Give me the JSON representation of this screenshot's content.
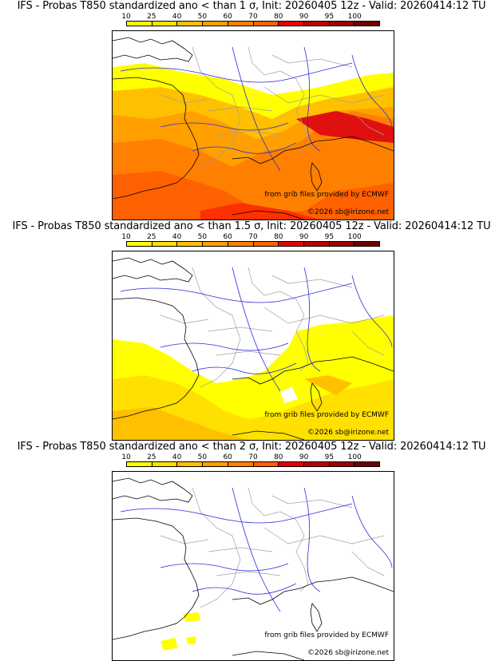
{
  "colorbar": {
    "labels": [
      "10",
      "25",
      "40",
      "50",
      "60",
      "70",
      "80",
      "90",
      "95",
      "100"
    ],
    "colors": [
      "#ffff00",
      "#ffe000",
      "#ffc000",
      "#ffa000",
      "#ff8000",
      "#ff6000",
      "#e80000",
      "#c00000",
      "#a00000",
      "#700000"
    ]
  },
  "panels": [
    {
      "title": "IFS - Probas T850  standardized ano < than 1 σ, Init: 20260405 12z - Valid: 20260414:12 TU",
      "credit": "from grib files provided by ECMWF",
      "copyright": "©2026 sb@irizone.net"
    },
    {
      "title": "IFS - Probas T850  standardized ano < than 1.5 σ, Init: 20260405 12z - Valid: 20260414:12 TU",
      "credit": "from grib files provided by ECMWF",
      "copyright": "©2026 sb@irizone.net"
    },
    {
      "title": "IFS - Probas T850  standardized ano < than 2 σ, Init: 20260405 12z - Valid: 20260414:12 TU",
      "credit": "from grib files provided by ECMWF",
      "copyright": "©2026 sb@irizone.net"
    }
  ],
  "map_colors": {
    "coast": "#000000",
    "rivers": "#2a2ad8",
    "borders": "#a0a0a0"
  }
}
